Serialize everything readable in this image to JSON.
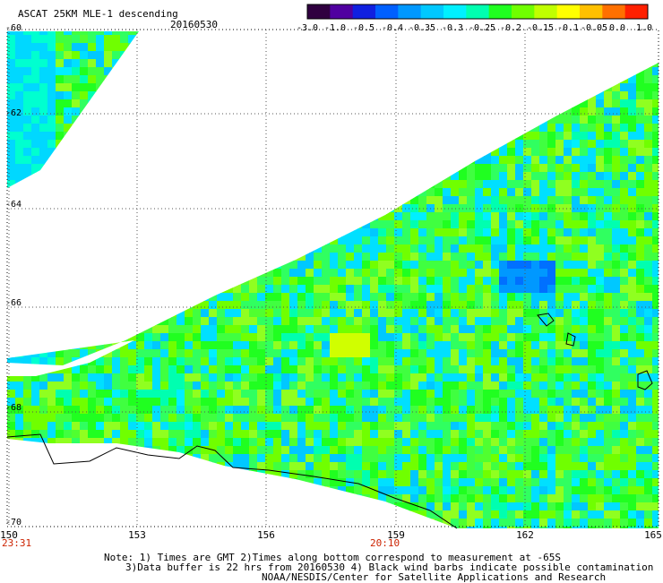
{
  "header": {
    "product": "ASCAT 25KM MLE-1 descending",
    "date": "20160530"
  },
  "colorbar": {
    "labels": [
      "-3.0",
      "-1.0",
      "-0.5",
      "-0.4",
      "-0.35",
      "-0.3",
      "-0.25",
      "-0.2",
      "-0.15",
      "-0.1",
      "-0.05",
      "0.0",
      "1.0"
    ],
    "colors": [
      "#300040",
      "#5000a0",
      "#1020e0",
      "#0060ff",
      "#0098ff",
      "#00c8ff",
      "#00f0ff",
      "#00ffb0",
      "#20ff20",
      "#70ff00",
      "#c0ff00",
      "#ffff00",
      "#ffc000",
      "#ff7000",
      "#ff2000"
    ]
  },
  "axes": {
    "lat_labels": [
      "-60",
      "-62",
      "-64",
      "-66",
      "-68",
      "-70"
    ],
    "lon_labels": [
      "150",
      "153",
      "156",
      "159",
      "162",
      "165"
    ],
    "time_labels": [
      "23:31",
      "20:10"
    ]
  },
  "notes": [
    "Note: 1) Times are GMT 2)Times along bottom correspond to measurement at -65S",
    "3)Data buffer is 22 hrs from 20160530 4) Black wind barbs indicate possible contamination",
    "NOAA/NESDIS/Center for Satellite Applications and Research"
  ]
}
